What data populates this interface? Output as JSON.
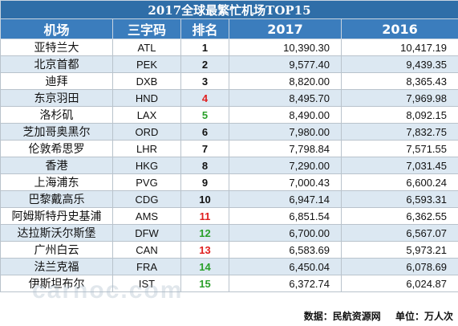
{
  "chart_data": {
    "type": "table",
    "title": "2017全球最繁忙机场TOP15",
    "columns": [
      "机场",
      "三字码",
      "排名",
      "2017",
      "2016"
    ],
    "rows": [
      {
        "name": "亚特兰大",
        "code": "ATL",
        "rank": "1",
        "rank_color": "#111111",
        "v2017": "10,390.30",
        "v2016": "10,417.19"
      },
      {
        "name": "北京首都",
        "code": "PEK",
        "rank": "2",
        "rank_color": "#111111",
        "v2017": "9,577.40",
        "v2016": "9,439.35"
      },
      {
        "name": "迪拜",
        "code": "DXB",
        "rank": "3",
        "rank_color": "#111111",
        "v2017": "8,820.00",
        "v2016": "8,365.43"
      },
      {
        "name": "东京羽田",
        "code": "HND",
        "rank": "4",
        "rank_color": "#e02020",
        "v2017": "8,495.70",
        "v2016": "7,969.98"
      },
      {
        "name": "洛杉矶",
        "code": "LAX",
        "rank": "5",
        "rank_color": "#2aa02a",
        "v2017": "8,490.00",
        "v2016": "8,092.15"
      },
      {
        "name": "芝加哥奥黑尔",
        "code": "ORD",
        "rank": "6",
        "rank_color": "#111111",
        "v2017": "7,980.00",
        "v2016": "7,832.75"
      },
      {
        "name": "伦敦希思罗",
        "code": "LHR",
        "rank": "7",
        "rank_color": "#111111",
        "v2017": "7,798.84",
        "v2016": "7,571.55"
      },
      {
        "name": "香港",
        "code": "HKG",
        "rank": "8",
        "rank_color": "#111111",
        "v2017": "7,290.00",
        "v2016": "7,031.45"
      },
      {
        "name": "上海浦东",
        "code": "PVG",
        "rank": "9",
        "rank_color": "#111111",
        "v2017": "7,000.43",
        "v2016": "6,600.24"
      },
      {
        "name": "巴黎戴高乐",
        "code": "CDG",
        "rank": "10",
        "rank_color": "#111111",
        "v2017": "6,947.14",
        "v2016": "6,593.31"
      },
      {
        "name": "阿姆斯特丹史基浦",
        "code": "AMS",
        "rank": "11",
        "rank_color": "#e02020",
        "v2017": "6,851.54",
        "v2016": "6,362.55"
      },
      {
        "name": "达拉斯沃尔斯堡",
        "code": "DFW",
        "rank": "12",
        "rank_color": "#2aa02a",
        "v2017": "6,700.00",
        "v2016": "6,567.07"
      },
      {
        "name": "广州白云",
        "code": "CAN",
        "rank": "13",
        "rank_color": "#e02020",
        "v2017": "6,583.69",
        "v2016": "5,973.21"
      },
      {
        "name": "法兰克福",
        "code": "FRA",
        "rank": "14",
        "rank_color": "#2aa02a",
        "v2017": "6,450.04",
        "v2016": "6,078.69"
      },
      {
        "name": "伊斯坦布尔",
        "code": "IST",
        "rank": "15",
        "rank_color": "#2aa02a",
        "v2017": "6,372.74",
        "v2016": "6,024.87"
      }
    ]
  },
  "footer": {
    "source": "数据：民航资源网",
    "unit": "单位：万人次"
  },
  "watermark": "carnoc.com"
}
